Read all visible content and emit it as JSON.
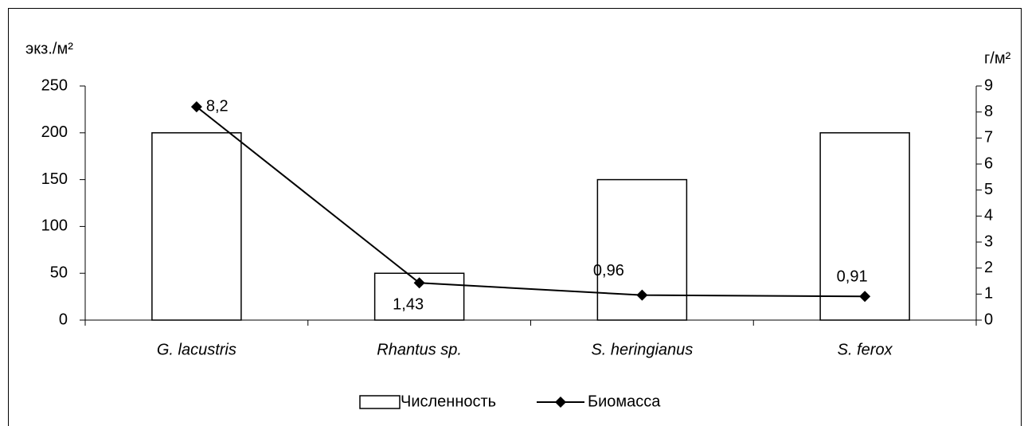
{
  "chart_data": {
    "type": "bar_line",
    "y_label": "экз./м²",
    "y2_label": "г/м²",
    "categories": [
      "G. lacustris",
      "Rhantus sp.",
      "S. heringianus",
      "S. ferox"
    ],
    "series": [
      {
        "name": "Численность",
        "type": "bar",
        "color": "#ffffff",
        "values": [
          200,
          50,
          150,
          200
        ]
      },
      {
        "name": "Биомасса",
        "type": "line",
        "axis": "y2",
        "color": "#000000",
        "values": [
          8.2,
          1.43,
          0.96,
          0.91
        ],
        "value_labels": [
          "8,2",
          "1,43",
          "0,96",
          "0,91"
        ]
      }
    ],
    "ylim": [
      0,
      250
    ],
    "yticks": [
      0,
      50,
      100,
      150,
      200,
      250
    ],
    "y2lim": [
      0,
      9
    ],
    "y2ticks": [
      0,
      1,
      2,
      3,
      4,
      5,
      6,
      7,
      8,
      9
    ],
    "legend": "bottom",
    "grid": false
  }
}
